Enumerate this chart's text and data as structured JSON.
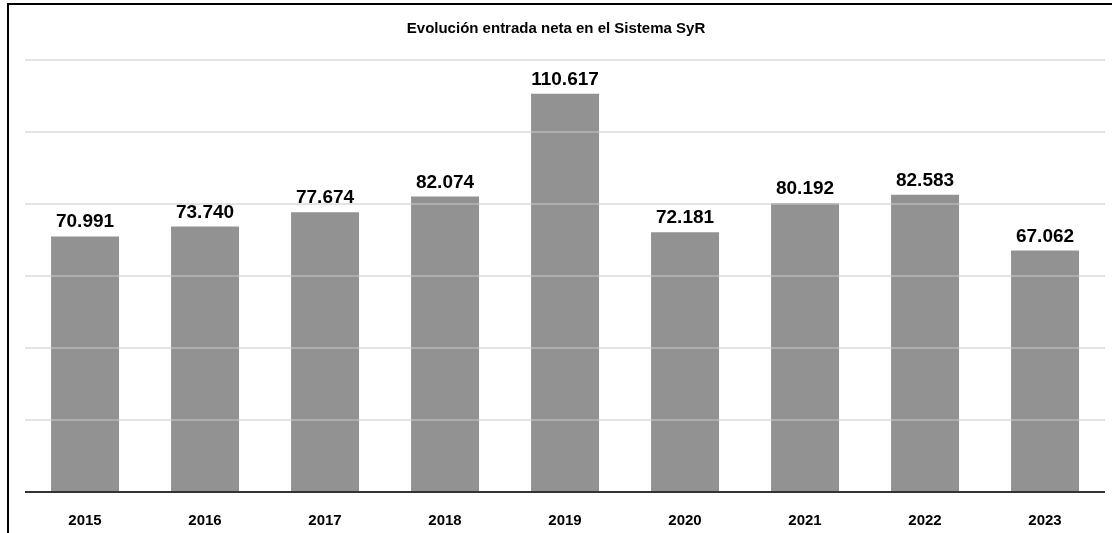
{
  "chart_data": {
    "type": "bar",
    "title": "Evolución entrada neta en el Sistema SyR",
    "categories": [
      "2015",
      "2016",
      "2017",
      "2018",
      "2019",
      "2020",
      "2021",
      "2022",
      "2023"
    ],
    "values": [
      70991,
      73740,
      77674,
      82074,
      110617,
      72181,
      80192,
      82583,
      67062
    ],
    "value_labels": [
      "70.991",
      "73.740",
      "77.674",
      "82.074",
      "110.617",
      "72.181",
      "80.192",
      "82.583",
      "67.062"
    ],
    "color": "#929292",
    "ylim": [
      0,
      120000
    ],
    "yticks": [
      {
        "value": 0,
        "label": null
      },
      {
        "value": 20000,
        "label": null
      },
      {
        "value": 40000,
        "label": null
      },
      {
        "value": 60000,
        "label": null
      },
      {
        "value": 80000,
        "label": null
      },
      {
        "value": 100000,
        "label": null
      },
      {
        "value": 120000,
        "label": null
      }
    ],
    "grid": "y",
    "tick_labels": "x"
  }
}
